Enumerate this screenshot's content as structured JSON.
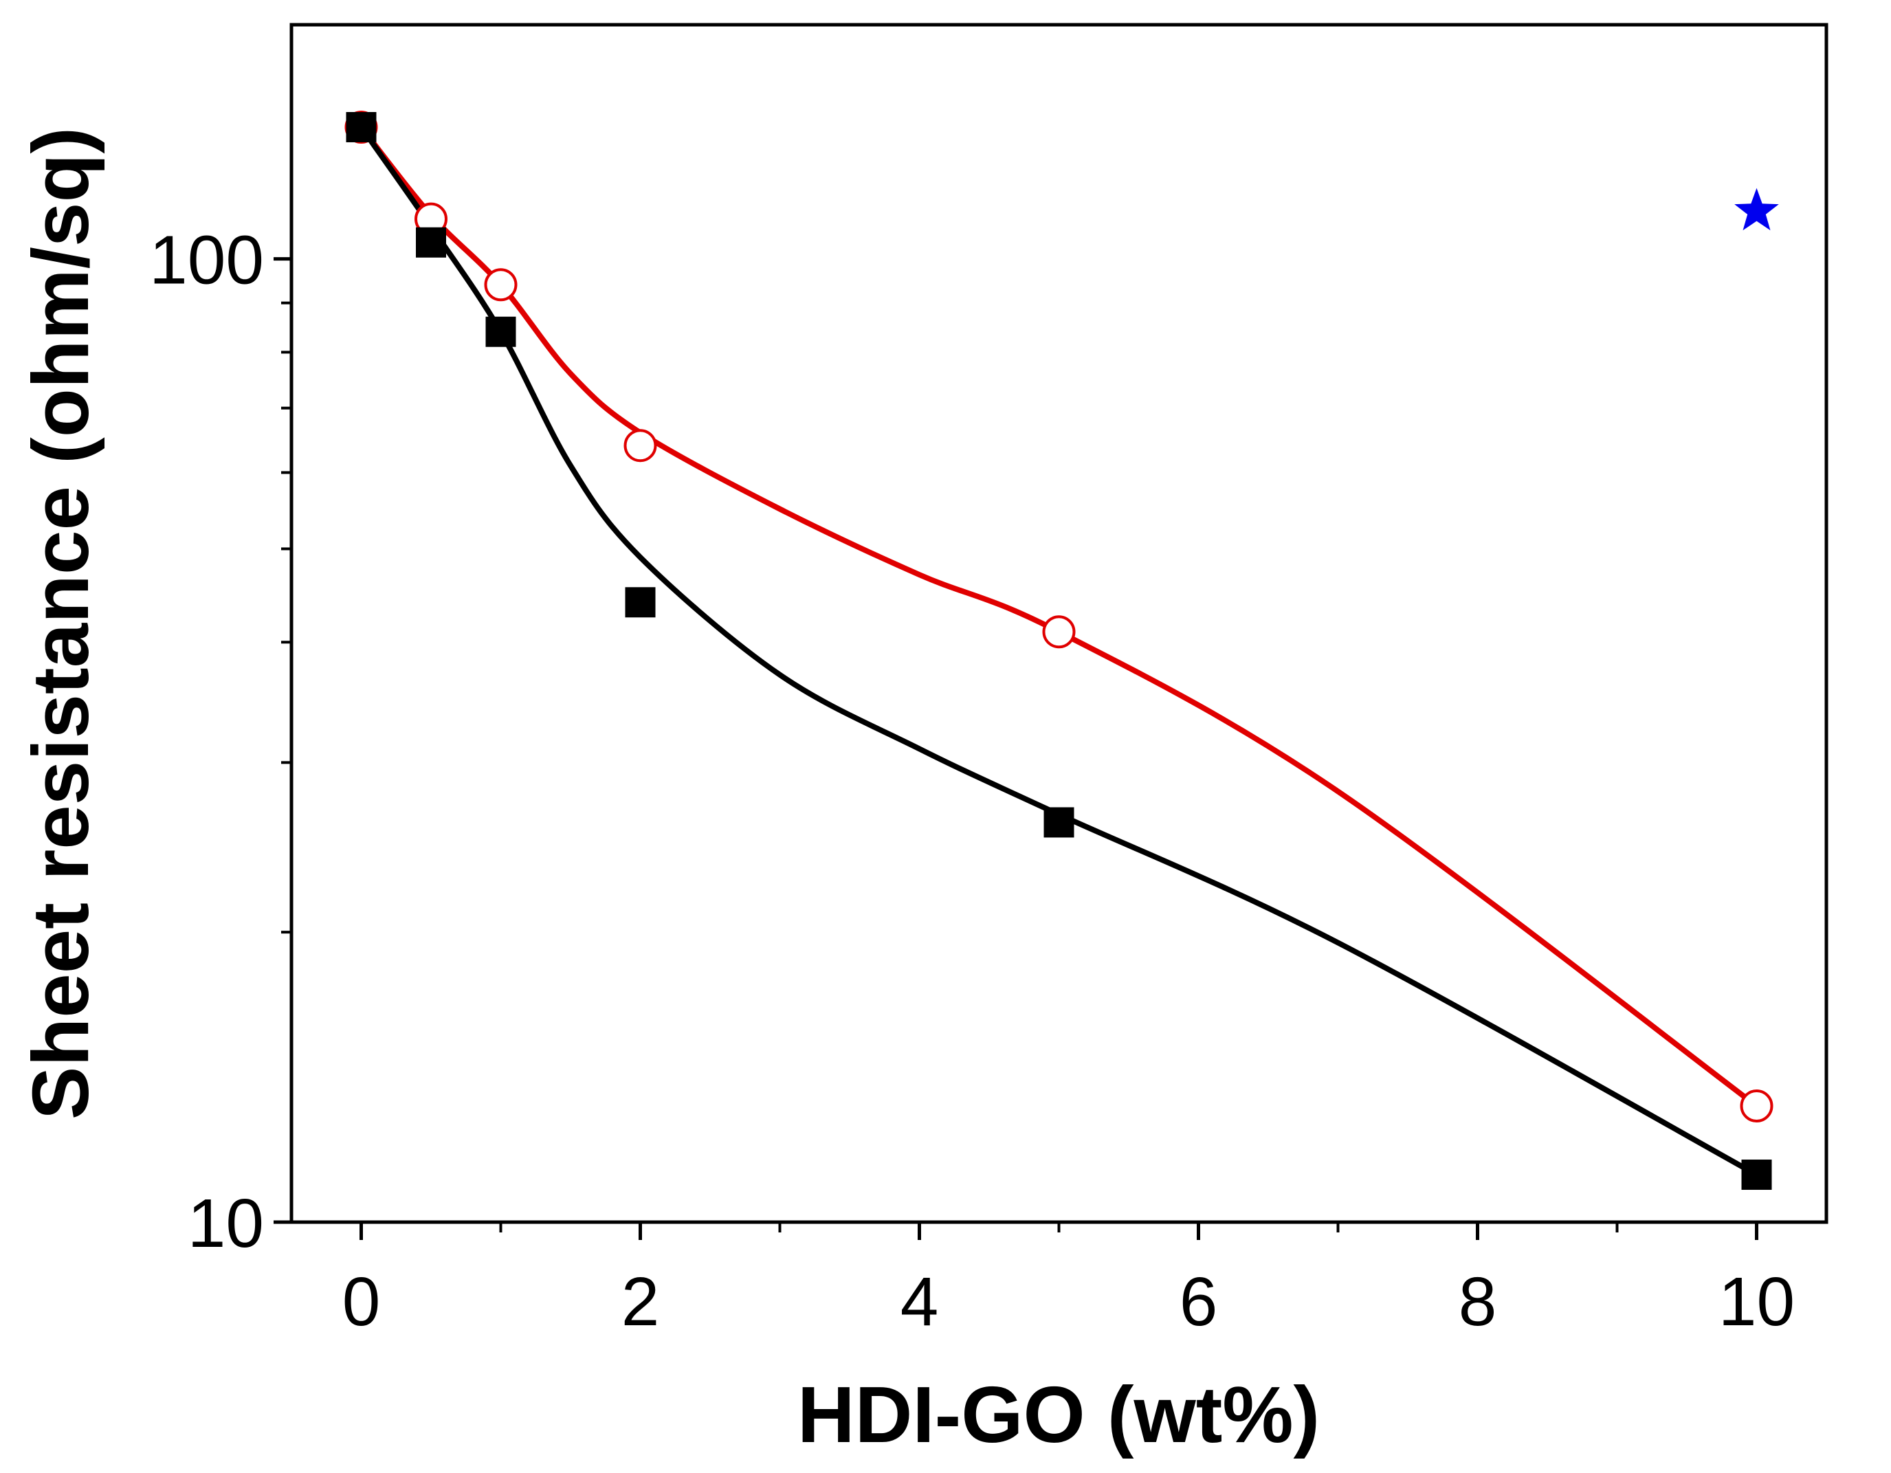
{
  "chart_data": {
    "type": "scatter",
    "title": "",
    "xlabel": "HDI-GO (wt%)",
    "ylabel": "Sheet resistance (ohm/sq)",
    "xlim": [
      -0.5,
      10.5
    ],
    "ylim": [
      10,
      175
    ],
    "yscale": "log",
    "x_ticks": [
      0,
      2,
      4,
      6,
      8,
      10
    ],
    "x_tick_labels": [
      "0",
      "2",
      "4",
      "6",
      "8",
      "10"
    ],
    "x_minor_ticks": [
      1,
      3,
      5,
      7,
      9
    ],
    "y_ticks": [
      10,
      100
    ],
    "y_tick_labels": [
      "10",
      "100"
    ],
    "y_minor_ticks": [
      20,
      30,
      40,
      50,
      60,
      70,
      80,
      90
    ],
    "grid": false,
    "legend": "none",
    "series": [
      {
        "name": "black-filled-squares",
        "marker": "square-filled",
        "color": "#000000",
        "x": [
          0,
          0.5,
          1,
          2,
          5,
          10
        ],
        "y": [
          137,
          104,
          84,
          44,
          26,
          11.2
        ],
        "curve_x": [
          0,
          0.5,
          1,
          1.5,
          2,
          3,
          4,
          5,
          7,
          10
        ],
        "curve_y": [
          137,
          108,
          84,
          61,
          49,
          37,
          31,
          26.5,
          19.5,
          11.2
        ]
      },
      {
        "name": "red-open-circles",
        "marker": "circle-open",
        "color": "#e00000",
        "x": [
          0,
          0.5,
          1,
          2,
          5,
          10
        ],
        "y": [
          137,
          110,
          94,
          64,
          41,
          13.2
        ],
        "curve_x": [
          0,
          0.5,
          1,
          1.5,
          2,
          3,
          4,
          5,
          7,
          10
        ],
        "curve_y": [
          137,
          111,
          94,
          76,
          66,
          55,
          47,
          41,
          28,
          13.2
        ]
      },
      {
        "name": "blue-star",
        "marker": "star",
        "color": "#0000ee",
        "x": [
          10
        ],
        "y": [
          112
        ]
      }
    ]
  }
}
